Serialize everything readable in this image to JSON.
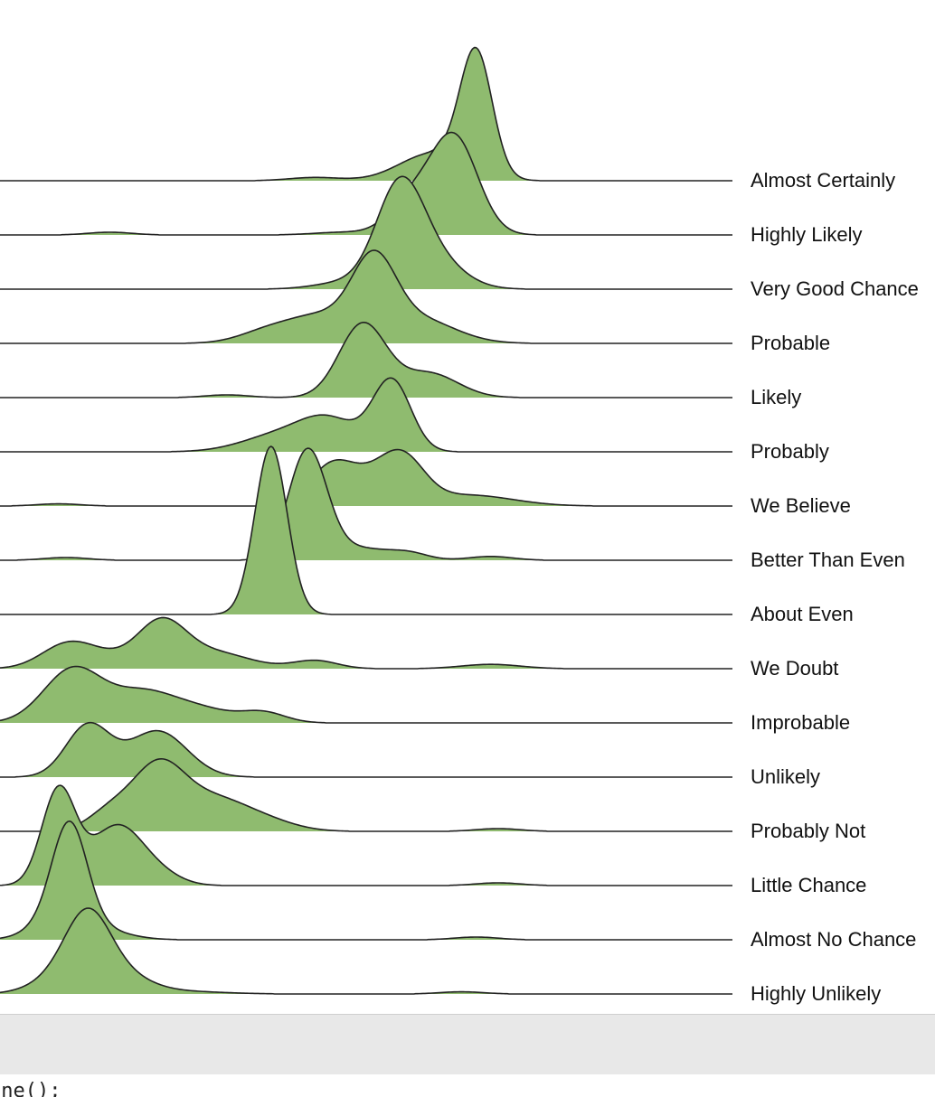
{
  "chart_data": {
    "type": "ridgeline",
    "xlim": [
      0,
      100
    ],
    "fill_color": "#8fbb6f",
    "stroke_color": "#222222",
    "categories": [
      "Almost Certainly",
      "Highly Likely",
      "Very Good Chance",
      "Probable",
      "Likely",
      "Probably",
      "We Believe",
      "Better Than Even",
      "About Even",
      "We Doubt",
      "Improbable",
      "Unlikely",
      "Probably Not",
      "Little Chance",
      "Almost No Chance",
      "Highly Unlikely"
    ],
    "series": [
      {
        "name": "Almost Certainly",
        "peaks": [
          [
            65,
            2.2,
            2.25
          ],
          [
            59,
            4.5,
            0.5
          ],
          [
            43,
            3.5,
            0.06
          ]
        ]
      },
      {
        "name": "Highly Likely",
        "peaks": [
          [
            62,
            3.2,
            1.8
          ],
          [
            56,
            3,
            0.6
          ],
          [
            47,
            4,
            0.05
          ],
          [
            15,
            3,
            0.05
          ]
        ]
      },
      {
        "name": "Very Good Chance",
        "peaks": [
          [
            54.5,
            3.2,
            1.75
          ],
          [
            59,
            4,
            0.55
          ],
          [
            47,
            4,
            0.12
          ]
        ]
      },
      {
        "name": "Probable",
        "peaks": [
          [
            51,
            3,
            1.4
          ],
          [
            57,
            5,
            0.45
          ],
          [
            44,
            4,
            0.45
          ],
          [
            37,
            4,
            0.25
          ]
        ]
      },
      {
        "name": "Likely",
        "peaks": [
          [
            49.5,
            3.2,
            1.35
          ],
          [
            58.5,
            4,
            0.45
          ],
          [
            31,
            3,
            0.05
          ]
        ]
      },
      {
        "name": "Probably",
        "peaks": [
          [
            53.5,
            2.6,
            1.3
          ],
          [
            45,
            4,
            0.55
          ],
          [
            38,
            5,
            0.3
          ]
        ]
      },
      {
        "name": "We Believe",
        "peaks": [
          [
            55,
            3,
            0.75
          ],
          [
            45,
            3,
            0.6
          ],
          [
            50,
            4,
            0.45
          ],
          [
            64,
            6,
            0.2
          ],
          [
            8,
            3,
            0.04
          ]
        ]
      },
      {
        "name": "Better Than Even",
        "peaks": [
          [
            42,
            2.6,
            2.0
          ],
          [
            49,
            4.5,
            0.22
          ],
          [
            56,
            2.5,
            0.1
          ],
          [
            67,
            3,
            0.07
          ],
          [
            9,
            3,
            0.05
          ]
        ]
      },
      {
        "name": "About Even",
        "peaks": [
          [
            37,
            2.2,
            3.1
          ]
        ]
      },
      {
        "name": "We Doubt",
        "peaks": [
          [
            22,
            3.3,
            0.8
          ],
          [
            9,
            3.5,
            0.4
          ],
          [
            14,
            4,
            0.2
          ],
          [
            29,
            5,
            0.3
          ],
          [
            43,
            3,
            0.15
          ],
          [
            67,
            4,
            0.08
          ]
        ]
      },
      {
        "name": "Improbable",
        "peaks": [
          [
            10,
            4,
            1.0
          ],
          [
            19,
            4,
            0.45
          ],
          [
            26,
            5,
            0.3
          ],
          [
            36,
            3,
            0.18
          ]
        ]
      },
      {
        "name": "Unlikely",
        "peaks": [
          [
            12,
            3,
            0.95
          ],
          [
            21.5,
            4,
            0.85
          ]
        ]
      },
      {
        "name": "Probably Not",
        "peaks": [
          [
            21.5,
            3.5,
            1.1
          ],
          [
            15,
            3,
            0.35
          ],
          [
            29,
            5,
            0.6
          ],
          [
            37,
            4,
            0.12
          ],
          [
            68,
            3,
            0.05
          ]
        ]
      },
      {
        "name": "Little Chance",
        "peaks": [
          [
            8,
            2.3,
            1.75
          ],
          [
            16,
            3.6,
            1.1
          ],
          [
            22,
            3,
            0.15
          ],
          [
            68,
            3,
            0.05
          ]
        ]
      },
      {
        "name": "Almost No Chance",
        "peaks": [
          [
            9.5,
            2.4,
            1.95
          ],
          [
            6,
            3,
            0.2
          ],
          [
            13,
            4,
            0.2
          ],
          [
            65,
            3,
            0.05
          ]
        ]
      },
      {
        "name": "Highly Unlikely",
        "peaks": [
          [
            12,
            3,
            1.1
          ],
          [
            9,
            4,
            0.35
          ],
          [
            16,
            4,
            0.35
          ],
          [
            24,
            6,
            0.05
          ],
          [
            63,
            3,
            0.04
          ]
        ]
      }
    ]
  }
}
